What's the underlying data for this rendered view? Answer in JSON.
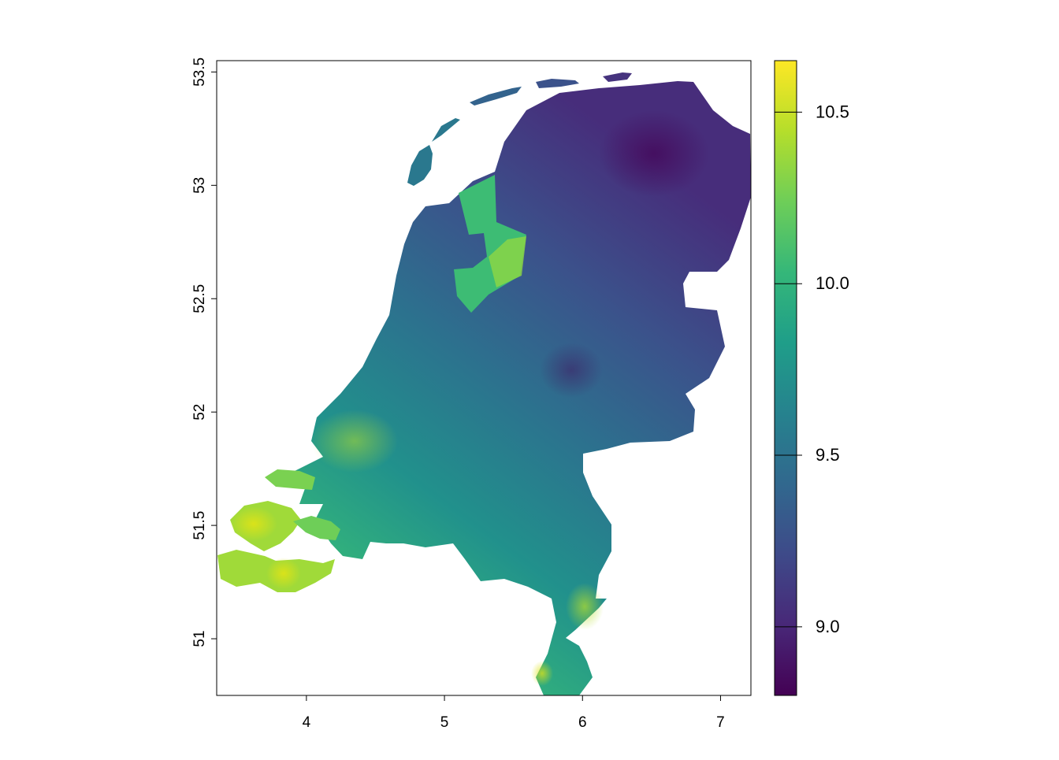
{
  "map": {
    "lon_ticks": [
      "4",
      "5",
      "6",
      "7"
    ],
    "lat_ticks": [
      "51",
      "51.5",
      "52",
      "52.5",
      "53",
      "53.5"
    ],
    "lon_range": [
      3.35,
      7.22
    ],
    "lat_range": [
      50.75,
      53.55
    ]
  },
  "legend": {
    "ticks": [
      "9.0",
      "9.5",
      "10.0",
      "10.5"
    ],
    "range": [
      8.8,
      10.65
    ],
    "colormap": "viridis"
  },
  "colors": {
    "viridis_stops": [
      "#440154",
      "#482878",
      "#3e4a89",
      "#31688e",
      "#26828e",
      "#1f9e89",
      "#35b779",
      "#6ece58",
      "#b5de2b",
      "#fde725"
    ],
    "frame": "#000000",
    "background": "#ffffff"
  }
}
